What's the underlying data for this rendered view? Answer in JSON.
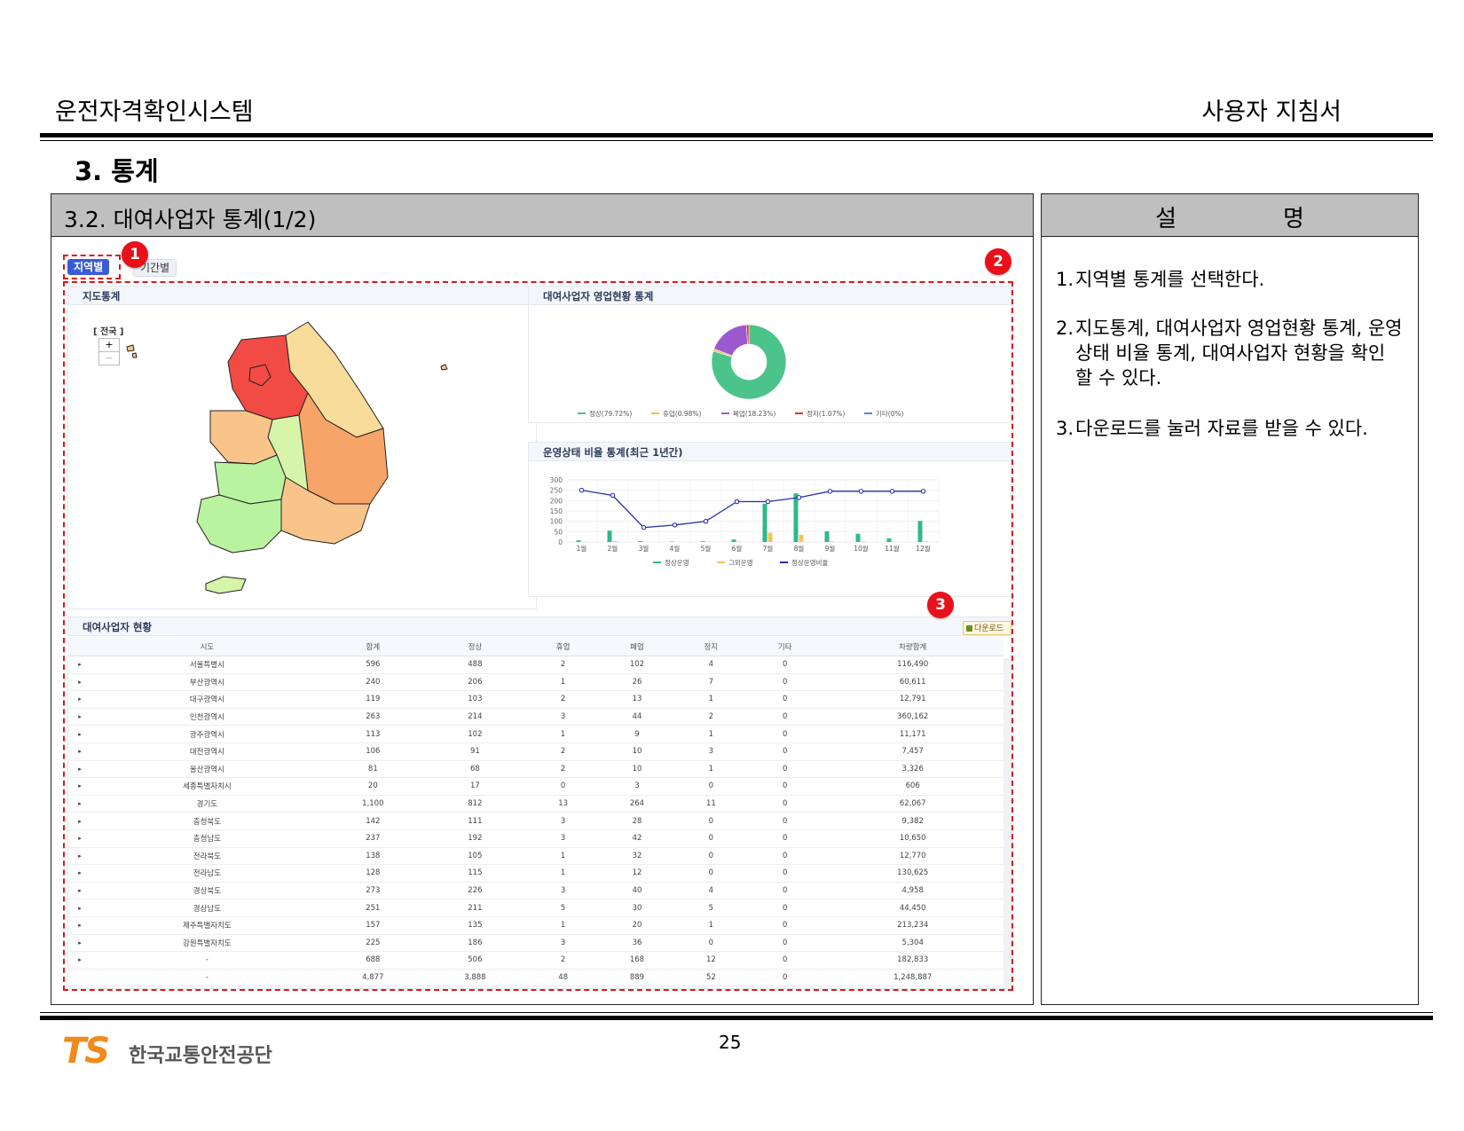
{
  "header": {
    "left_title": "운전자격확인시스템",
    "right_title": "사용자 지침서"
  },
  "section_title": "3. 통계",
  "left_box": {
    "title": "3.2. 대여사업자 통계(1/2)"
  },
  "right_box": {
    "title": "설명",
    "items": [
      {
        "num": "1.",
        "text": "지역별 통계를 선택한다."
      },
      {
        "num": "2.",
        "text": "지도통계, 대여사업자 영업현황 통계, 운영상태 비율 통계, 대여사업자 현황을 확인 할 수 있다."
      },
      {
        "num": "3.",
        "text": "다운로드를 눌러 자료를 받을 수 있다."
      }
    ]
  },
  "screen": {
    "tabs": {
      "region": "지역별",
      "period": "기간별"
    },
    "markers": [
      "1",
      "2",
      "3"
    ],
    "map_panel": {
      "title": "지도통계",
      "label": "[ 전국 ]",
      "zoom_in": "+",
      "zoom_out": "—"
    },
    "pie_panel": {
      "title": "대여사업자 영업현황 통계"
    },
    "line_panel": {
      "title": "운영상태 비율 통계(최근 1년간)"
    },
    "table_panel": {
      "title": "대여사업자 현황",
      "download": "다운로드"
    },
    "table": {
      "headers": [
        "시도",
        "합계",
        "정상",
        "휴업",
        "폐업",
        "정지",
        "기타",
        "차량합계"
      ],
      "rows": [
        [
          "서울특별시",
          "596",
          "488",
          "2",
          "102",
          "4",
          "0",
          "116,490"
        ],
        [
          "부산광역시",
          "240",
          "206",
          "1",
          "26",
          "7",
          "0",
          "60,611"
        ],
        [
          "대구광역시",
          "119",
          "103",
          "2",
          "13",
          "1",
          "0",
          "12,791"
        ],
        [
          "인천광역시",
          "263",
          "214",
          "3",
          "44",
          "2",
          "0",
          "360,162"
        ],
        [
          "광주광역시",
          "113",
          "102",
          "1",
          "9",
          "1",
          "0",
          "11,171"
        ],
        [
          "대전광역시",
          "106",
          "91",
          "2",
          "10",
          "3",
          "0",
          "7,457"
        ],
        [
          "울산광역시",
          "81",
          "68",
          "2",
          "10",
          "1",
          "0",
          "3,326"
        ],
        [
          "세종특별자치시",
          "20",
          "17",
          "0",
          "3",
          "0",
          "0",
          "606"
        ],
        [
          "경기도",
          "1,100",
          "812",
          "13",
          "264",
          "11",
          "0",
          "62,067"
        ],
        [
          "충청북도",
          "142",
          "111",
          "3",
          "28",
          "0",
          "0",
          "9,382"
        ],
        [
          "충청남도",
          "237",
          "192",
          "3",
          "42",
          "0",
          "0",
          "10,650"
        ],
        [
          "전라북도",
          "138",
          "105",
          "1",
          "32",
          "0",
          "0",
          "12,770"
        ],
        [
          "전라남도",
          "128",
          "115",
          "1",
          "12",
          "0",
          "0",
          "130,625"
        ],
        [
          "경상북도",
          "273",
          "226",
          "3",
          "40",
          "4",
          "0",
          "4,958"
        ],
        [
          "경상남도",
          "251",
          "211",
          "5",
          "30",
          "5",
          "0",
          "44,450"
        ],
        [
          "제주특별자치도",
          "157",
          "135",
          "1",
          "20",
          "1",
          "0",
          "213,234"
        ],
        [
          "강원특별자치도",
          "225",
          "186",
          "3",
          "36",
          "0",
          "0",
          "5,304"
        ],
        [
          "-",
          "688",
          "506",
          "2",
          "168",
          "12",
          "0",
          "182,833"
        ],
        [
          "-",
          "4,877",
          "3,888",
          "48",
          "889",
          "52",
          "0",
          "1,248,887"
        ]
      ]
    }
  },
  "chart_data": [
    {
      "type": "pie",
      "slices": [
        {
          "label": "정상(79.72%)",
          "value": 79.72,
          "color": "#4cc38a"
        },
        {
          "label": "휴업(0.98%)",
          "value": 0.98,
          "color": "#f5c04a"
        },
        {
          "label": "폐업(18.23%)",
          "value": 18.23,
          "color": "#9b59d0"
        },
        {
          "label": "정지(1.07%)",
          "value": 1.07,
          "color": "#e0302a"
        },
        {
          "label": "기타(0%)",
          "value": 0,
          "color": "#5b7fd6"
        }
      ]
    },
    {
      "type": "bar",
      "categories": [
        "1월",
        "2월",
        "3월",
        "4월",
        "5월",
        "6월",
        "7월",
        "8월",
        "9월",
        "10월",
        "11월",
        "12월"
      ],
      "ylim": [
        0,
        300
      ],
      "yticks": [
        0,
        50,
        100,
        150,
        200,
        250,
        300
      ],
      "series": [
        {
          "name": "정상운영",
          "kind": "bar",
          "color": "#2fb98a",
          "values": [
            8,
            55,
            4,
            2,
            3,
            12,
            185,
            235,
            52,
            40,
            18,
            102
          ]
        },
        {
          "name": "그외운영",
          "kind": "bar",
          "color": "#f5c35a",
          "values": [
            2,
            4,
            1,
            1,
            1,
            2,
            45,
            35,
            3,
            2,
            1,
            3
          ]
        },
        {
          "name": "정상운영비율",
          "kind": "line",
          "color": "#2b2fa8",
          "values": [
            250,
            225,
            70,
            82,
            100,
            195,
            195,
            215,
            245,
            245,
            245,
            245
          ]
        }
      ]
    }
  ],
  "map_colors": {
    "red": "#f24b45",
    "orange": "#f7a468",
    "lightorange": "#f9c48a",
    "yellow": "#f8dc9a",
    "green": "#b9f3a0",
    "lightgreen": "#d6f5a8"
  },
  "footer": {
    "logo": "TS",
    "org": "한국교통안전공단",
    "page": "25"
  }
}
